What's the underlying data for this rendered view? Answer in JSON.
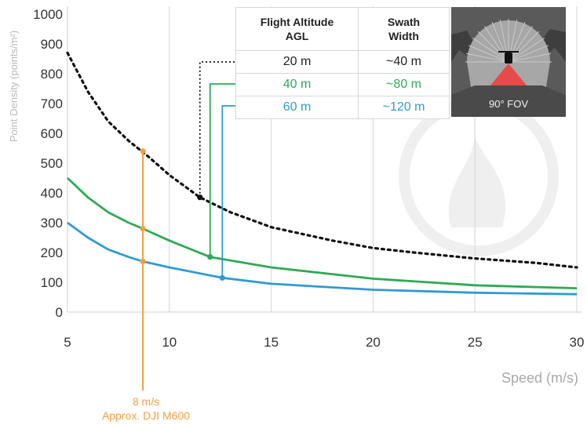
{
  "chart_data": {
    "type": "line",
    "xlabel": "Speed (m/s)",
    "ylabel": "Point Density (points/m²)",
    "xlim": [
      5,
      30
    ],
    "ylim": [
      0,
      1000
    ],
    "xticks": [
      5,
      10,
      15,
      20,
      25,
      30
    ],
    "yticks": [
      0,
      100,
      200,
      300,
      400,
      500,
      600,
      700,
      800,
      900,
      1000
    ],
    "grid": "vertical",
    "colors": {
      "altitude_20": "#111111",
      "altitude_40": "#2eaa55",
      "altitude_60": "#2f9bd3",
      "annotation": "#f0a040"
    },
    "series": [
      {
        "altitude": "20 m",
        "style": "dotted",
        "x": [
          5,
          6,
          7,
          8,
          9,
          10,
          11.5,
          13,
          15,
          18,
          20,
          22,
          25,
          28,
          30
        ],
        "y": [
          870,
          740,
          640,
          575,
          520,
          460,
          385,
          335,
          285,
          240,
          215,
          200,
          180,
          165,
          150
        ]
      },
      {
        "altitude": "40 m",
        "style": "solid",
        "x": [
          5,
          6,
          7,
          8,
          8.7,
          10,
          12,
          15,
          20,
          25,
          30
        ],
        "y": [
          450,
          385,
          335,
          300,
          280,
          240,
          185,
          150,
          112,
          90,
          80
        ]
      },
      {
        "altitude": "60 m",
        "style": "solid",
        "x": [
          5,
          6,
          7,
          8,
          8.7,
          10,
          12.6,
          15,
          20,
          25,
          30
        ],
        "y": [
          300,
          250,
          210,
          185,
          170,
          150,
          115,
          95,
          75,
          65,
          60
        ]
      }
    ],
    "markers": [
      {
        "series": "20 m",
        "x": 8.7,
        "y": 540
      },
      {
        "series": "40 m",
        "x": 8.7,
        "y": 280
      },
      {
        "series": "60 m",
        "x": 8.7,
        "y": 170
      },
      {
        "series": "20 m",
        "x": 11.5,
        "y": 385
      },
      {
        "series": "40 m",
        "x": 12.0,
        "y": 185
      },
      {
        "series": "60 m",
        "x": 12.6,
        "y": 115
      }
    ],
    "annotation": {
      "x": 8.7,
      "line1": "8 m/s",
      "line2": "Approx. DJI M600"
    },
    "table": {
      "headers": [
        "Flight Altitude\nAGL",
        "Swath\nWidth"
      ],
      "rows": [
        {
          "altitude": "20 m",
          "swath": "~40 m"
        },
        {
          "altitude": "40 m",
          "swath": "~80 m"
        },
        {
          "altitude": "60 m",
          "swath": "~120 m"
        }
      ]
    },
    "fov_label": "90° FOV"
  }
}
